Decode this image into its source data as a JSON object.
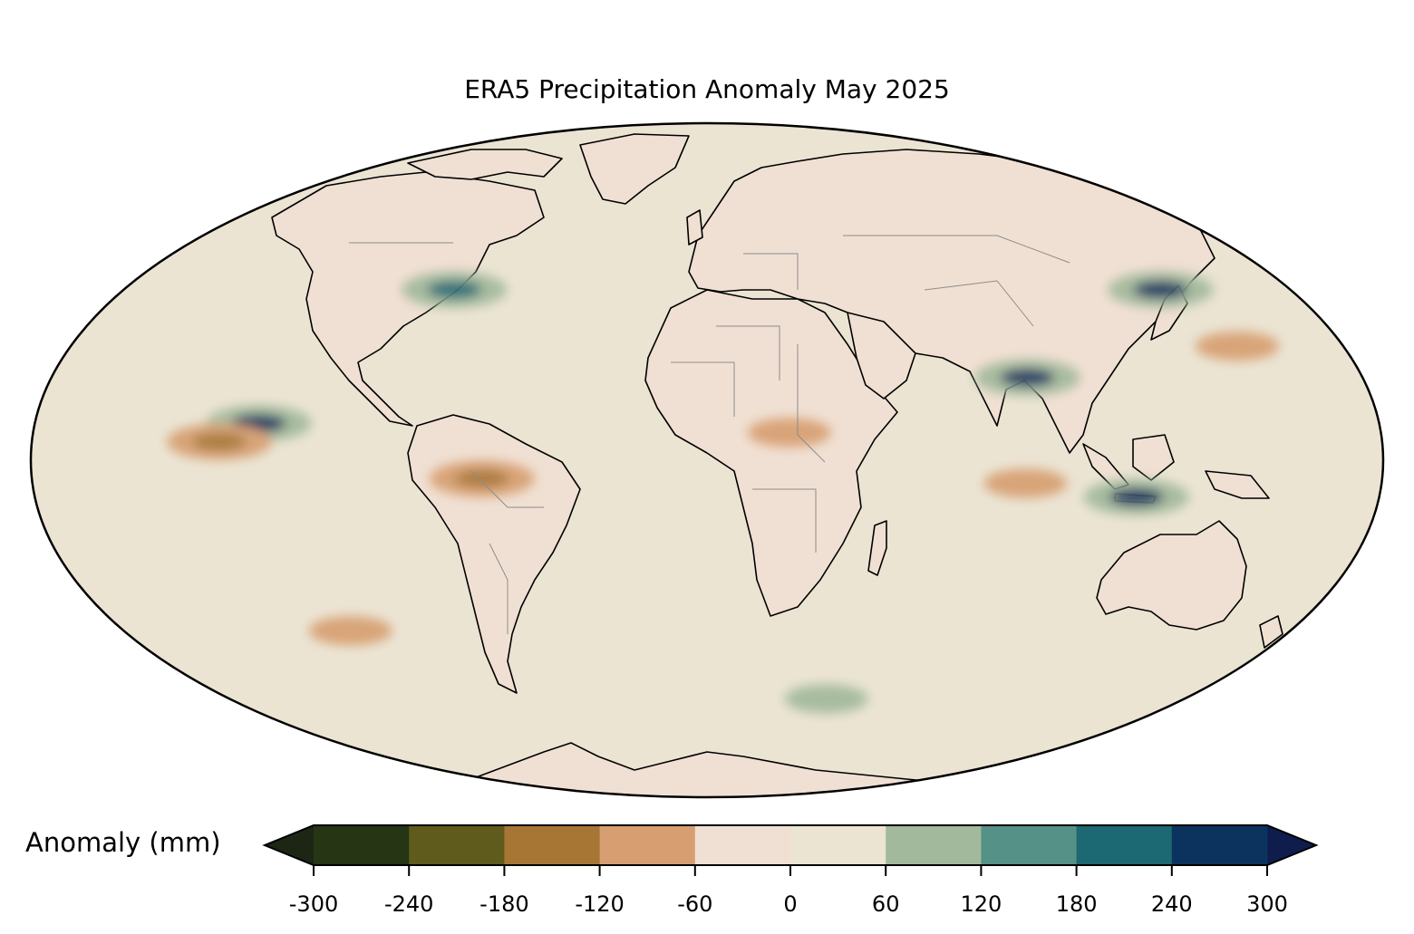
{
  "title": "ERA5 Precipitation Anomaly May 2025",
  "map": {
    "projection": "mollweide",
    "field": "precipitation anomaly",
    "land_fill": "#f0e0d3",
    "ocean_fill": "#ebe4d3",
    "coastline_color": "#000000",
    "border_color": "#8c8c8c",
    "regions": [
      {
        "id": "amazon-dry",
        "lon": -60,
        "lat": -4,
        "category": -180
      },
      {
        "id": "central-africa-dry",
        "lon": 22,
        "lat": 6,
        "category": -120
      },
      {
        "id": "itcz-wet-pacific",
        "lon": -120,
        "lat": 8,
        "category": 240
      },
      {
        "id": "itcz-dry-pacific",
        "lon": -130,
        "lat": 4,
        "category": -180
      },
      {
        "id": "bay-of-bengal-wet",
        "lon": 88,
        "lat": 18,
        "category": 300
      },
      {
        "id": "maritime-continent-wet",
        "lon": 115,
        "lat": -8,
        "category": 240
      },
      {
        "id": "south-pacific-dry",
        "lon": -110,
        "lat": -38,
        "category": -120
      },
      {
        "id": "indian-ocean-dry",
        "lon": 85,
        "lat": -5,
        "category": -120
      },
      {
        "id": "nw-pacific-dry",
        "lon": 150,
        "lat": 25,
        "category": -120
      },
      {
        "id": "east-us-wet",
        "lon": -78,
        "lat": 38,
        "category": 180
      },
      {
        "id": "japan-wet",
        "lon": 140,
        "lat": 38,
        "category": 240
      },
      {
        "id": "south-indian-wet",
        "lon": 45,
        "lat": -55,
        "category": 120
      }
    ]
  },
  "colorbar": {
    "label": "Anomaly (mm)",
    "ticks": [
      "-300",
      "-240",
      "-180",
      "-120",
      "-60",
      "0",
      "60",
      "120",
      "180",
      "240",
      "300"
    ],
    "levels": [
      -300,
      -240,
      -180,
      -120,
      -60,
      0,
      60,
      120,
      180,
      240,
      300
    ],
    "colors": [
      "#263514",
      "#5e5b1c",
      "#a87634",
      "#d79f71",
      "#f0e0d3",
      "#ebe4d3",
      "#a2b99b",
      "#559186",
      "#1c6873",
      "#0b335e"
    ],
    "under_color": "#1d2614",
    "over_color": "#0f1d4c",
    "extend": "both"
  }
}
